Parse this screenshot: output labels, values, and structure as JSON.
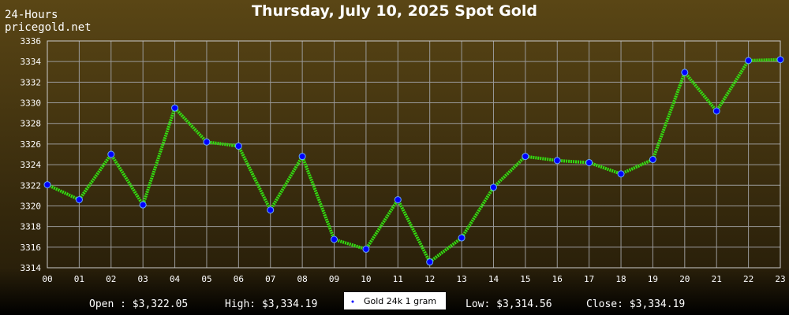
{
  "chart_data": {
    "type": "line",
    "title": "Thursday, July 10, 2025 Spot Gold",
    "header_lines": [
      "24-Hours",
      "pricegold.net"
    ],
    "categories": [
      "00",
      "01",
      "02",
      "03",
      "04",
      "05",
      "06",
      "07",
      "08",
      "09",
      "10",
      "11",
      "12",
      "13",
      "14",
      "15",
      "16",
      "17",
      "18",
      "19",
      "20",
      "21",
      "22",
      "23"
    ],
    "series": [
      {
        "name": "Gold 24k 1 gram",
        "color": "#33dd11",
        "marker_color": "#0000ff",
        "values": [
          3322.05,
          3320.6,
          3325.0,
          3320.1,
          3329.5,
          3326.2,
          3325.8,
          3319.6,
          3324.8,
          3316.75,
          3315.8,
          3320.6,
          3314.56,
          3316.9,
          3321.8,
          3324.8,
          3324.4,
          3324.2,
          3323.1,
          3324.5,
          3332.95,
          3329.2,
          3334.1,
          3334.19
        ]
      }
    ],
    "ylim": [
      3314,
      3336
    ],
    "yticks": [
      3314,
      3316,
      3318,
      3320,
      3322,
      3324,
      3326,
      3328,
      3330,
      3332,
      3334,
      3336
    ],
    "grid": true,
    "stats": [
      "Open : $3,322.05",
      "High: $3,334.19",
      "Low: $3,314.56",
      "Close: $3,334.19"
    ]
  }
}
